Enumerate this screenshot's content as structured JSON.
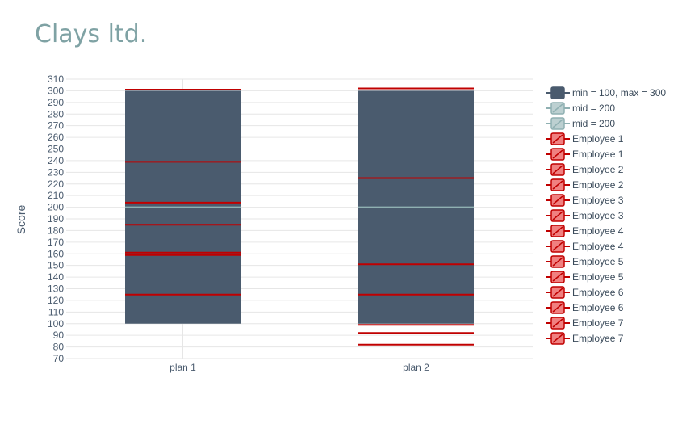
{
  "chart_data": {
    "type": "bar",
    "title": "Clays ltd.",
    "xlabel": "",
    "ylabel": "Score",
    "ylim": [
      70,
      310
    ],
    "ytick_step": 10,
    "categories": [
      "plan 1",
      "plan 2"
    ],
    "range_bars": [
      {
        "category": "plan 1",
        "min": 100,
        "max": 300
      },
      {
        "category": "plan 2",
        "min": 100,
        "max": 300
      }
    ],
    "mid_lines": [
      {
        "category": "plan 1",
        "value": 200
      },
      {
        "category": "plan 2",
        "value": 200
      }
    ],
    "employees": [
      {
        "name": "Employee 1",
        "plan 1": 125,
        "plan 2": 82
      },
      {
        "name": "Employee 2",
        "plan 1": 159,
        "plan 2": 125
      },
      {
        "name": "Employee 3",
        "plan 1": 161,
        "plan 2": 92
      },
      {
        "name": "Employee 4",
        "plan 1": 185,
        "plan 2": 151
      },
      {
        "name": "Employee 5",
        "plan 1": 204,
        "plan 2": 99
      },
      {
        "name": "Employee 6",
        "plan 1": 239,
        "plan 2": 225
      },
      {
        "name": "Employee 7",
        "plan 1": 301,
        "plan 2": 302
      }
    ],
    "legend": {
      "placement": "right",
      "entries": [
        {
          "label": "min = 100, max = 300",
          "kind": "range"
        },
        {
          "label": "mid = 200",
          "kind": "mid"
        },
        {
          "label": "mid = 200",
          "kind": "mid"
        },
        {
          "label": "Employee 1",
          "kind": "employee"
        },
        {
          "label": "Employee 1",
          "kind": "employee"
        },
        {
          "label": "Employee 2",
          "kind": "employee"
        },
        {
          "label": "Employee 2",
          "kind": "employee"
        },
        {
          "label": "Employee 3",
          "kind": "employee"
        },
        {
          "label": "Employee 3",
          "kind": "employee"
        },
        {
          "label": "Employee 4",
          "kind": "employee"
        },
        {
          "label": "Employee 4",
          "kind": "employee"
        },
        {
          "label": "Employee 5",
          "kind": "employee"
        },
        {
          "label": "Employee 5",
          "kind": "employee"
        },
        {
          "label": "Employee 6",
          "kind": "employee"
        },
        {
          "label": "Employee 6",
          "kind": "employee"
        },
        {
          "label": "Employee 7",
          "kind": "employee"
        },
        {
          "label": "Employee 7",
          "kind": "employee"
        }
      ]
    },
    "grid": true,
    "colors": {
      "title": "#7fa2a4",
      "range_fill": "#4a5b6e",
      "mid_line": "#8fb0b2",
      "employee_line": "#c00000",
      "employee_fill": "#f08080",
      "grid": "#e6e6e6",
      "tick_text": "#4a5b6e",
      "axis_title": "#4a5b6e",
      "legend_text": "#3a4a5a"
    }
  }
}
